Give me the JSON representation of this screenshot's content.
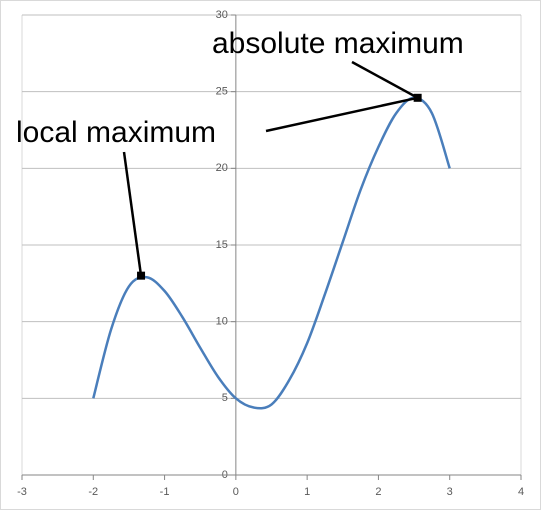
{
  "chart_data": {
    "type": "line",
    "x": [
      -2,
      -1.75,
      -1.5,
      -1.25,
      -1,
      -0.75,
      -0.5,
      -0.25,
      0,
      0.25,
      0.5,
      0.75,
      1,
      1.25,
      1.5,
      1.75,
      2,
      2.25,
      2.5,
      2.75,
      3
    ],
    "series": [
      {
        "color": "#4a7ebb",
        "values": [
          5,
          9.5,
          12.3,
          12.9,
          12,
          10.3,
          8.3,
          6.4,
          5,
          4.4,
          4.6,
          6.2,
          8.6,
          11.8,
          15.2,
          18.6,
          21.4,
          23.6,
          24.6,
          23.6,
          20
        ]
      }
    ],
    "xlim": [
      -3,
      4
    ],
    "xticks": [
      -3,
      -2,
      -1,
      0,
      1,
      2,
      3,
      4
    ],
    "ylim": [
      0,
      30
    ],
    "yticks": [
      0,
      5,
      10,
      15,
      20,
      25,
      30
    ],
    "grid": true,
    "annotations": [
      {
        "text": "local maximum",
        "x": -1.33,
        "y": 13
      },
      {
        "text": "absolute maximum",
        "x": 2.55,
        "y": 24.6
      }
    ]
  }
}
